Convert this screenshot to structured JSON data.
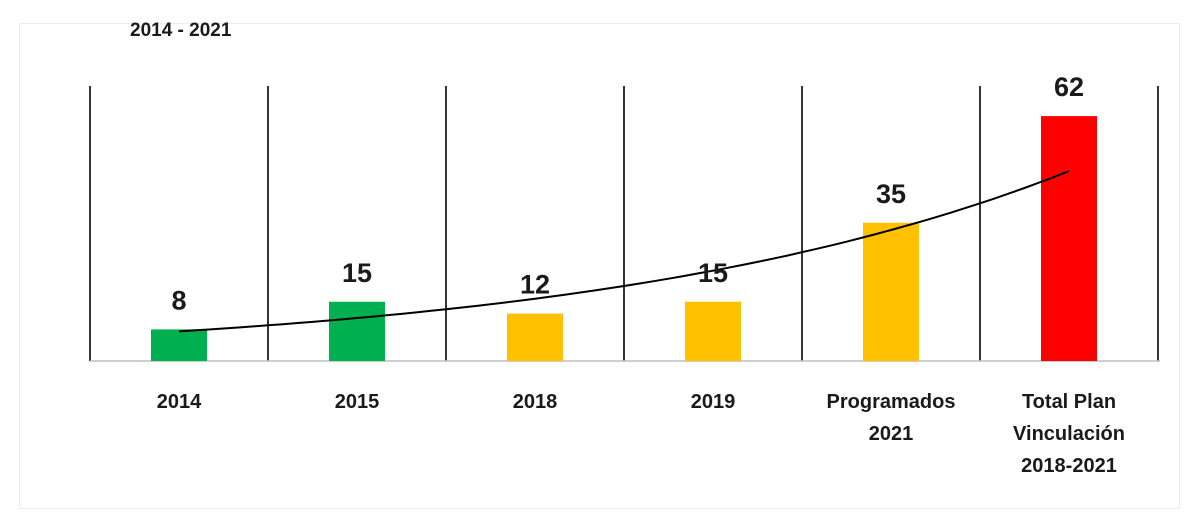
{
  "chart_data": {
    "type": "bar",
    "title": "2014 - 2021",
    "categories": [
      [
        "2014"
      ],
      [
        "2015"
      ],
      [
        "2018"
      ],
      [
        "2019"
      ],
      [
        "Programados",
        "2021"
      ],
      [
        "Total  Plan",
        "Vinculación",
        "2018-2021"
      ]
    ],
    "values": [
      8,
      15,
      12,
      15,
      35,
      62
    ],
    "value_labels": [
      "8",
      "15",
      "12",
      "15",
      "35",
      "62"
    ],
    "bar_colors": [
      "#00b050",
      "#00b050",
      "#ffc000",
      "#ffc000",
      "#ffc000",
      "#ff0000"
    ],
    "trendline": {
      "type": "exponential",
      "color": "#000000"
    },
    "ylim": [
      0,
      70
    ],
    "grid": "vertical category separators",
    "legend": "none"
  }
}
